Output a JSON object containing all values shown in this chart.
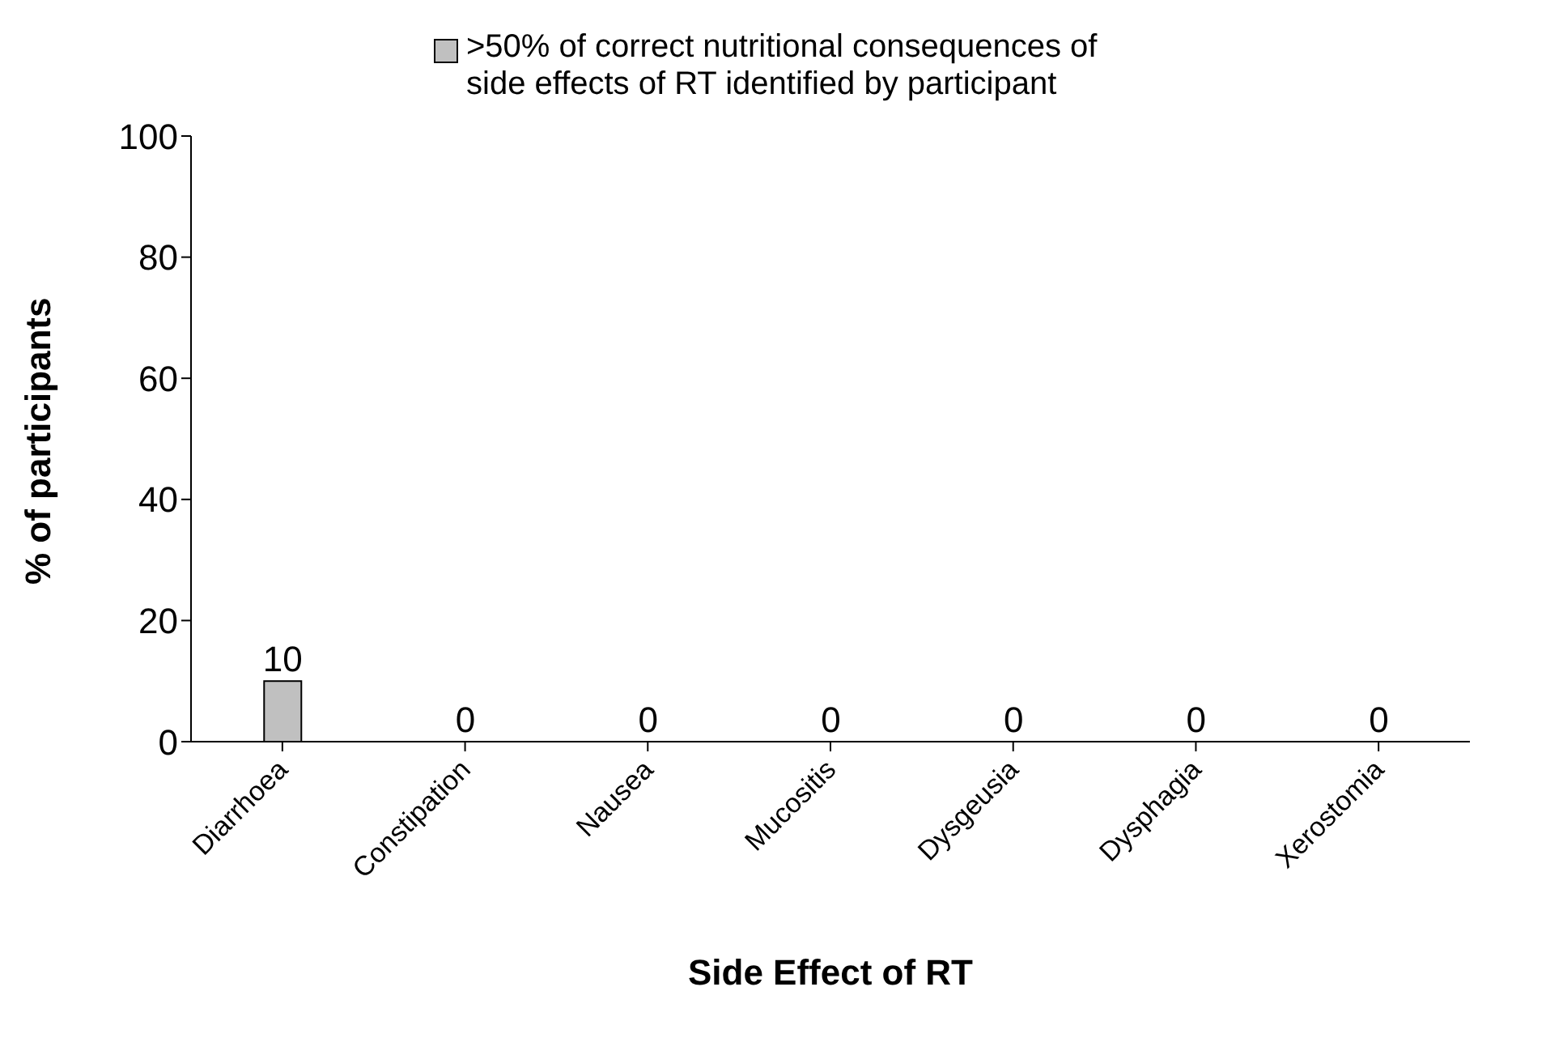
{
  "chart_data": {
    "type": "bar",
    "xlabel": "Side Effect of RT",
    "ylabel": "% of participants",
    "categories": [
      "Diarrhoea",
      "Constipation",
      "Nausea",
      "Mucositis",
      "Dysgeusia",
      "Dysphagia",
      "Xerostomia"
    ],
    "series": [
      {
        "name": ">50% of correct nutritional consequences of side effects of RT identified by participant",
        "color": "#c0c0c0",
        "values": [
          10,
          0,
          0,
          0,
          0,
          0,
          0
        ]
      }
    ],
    "ylim": [
      0,
      100
    ],
    "yticks": [
      0,
      20,
      40,
      60,
      80,
      100
    ],
    "data_labels": true,
    "legend": "top",
    "grid": false
  }
}
